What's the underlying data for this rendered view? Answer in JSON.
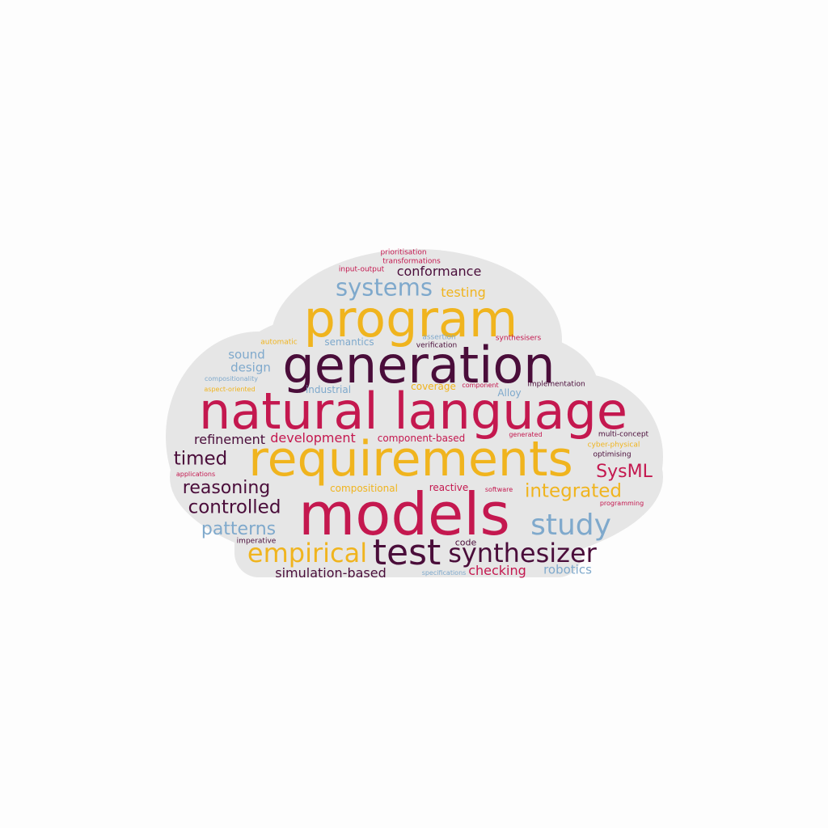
{
  "palette": {
    "background": "#fdfdfd",
    "cloud": "#e6e6e6",
    "crimson": "#c4184f",
    "gold": "#f0b41e",
    "plum": "#4a0d3a",
    "steel": "#7fa9cc"
  },
  "words": [
    {
      "text": "prioritisation",
      "color": "#c4184f"
    },
    {
      "text": "transformations",
      "color": "#c4184f"
    },
    {
      "text": "input-output",
      "color": "#c4184f"
    },
    {
      "text": "conformance",
      "color": "#4a0d3a"
    },
    {
      "text": "systems",
      "color": "#7fa9cc"
    },
    {
      "text": "testing",
      "color": "#f0b41e"
    },
    {
      "text": "program",
      "color": "#f0b41e"
    },
    {
      "text": "automatic",
      "color": "#f0b41e"
    },
    {
      "text": "semantics",
      "color": "#7fa9cc"
    },
    {
      "text": "assertion",
      "color": "#7fa9cc"
    },
    {
      "text": "verification",
      "color": "#4a0d3a"
    },
    {
      "text": "synthesisers",
      "color": "#c4184f"
    },
    {
      "text": "sound",
      "color": "#7fa9cc"
    },
    {
      "text": "design",
      "color": "#7fa9cc"
    },
    {
      "text": "generation",
      "color": "#4a0d3a"
    },
    {
      "text": "compositionality",
      "color": "#7fa9cc"
    },
    {
      "text": "aspect-oriented",
      "color": "#f0b41e"
    },
    {
      "text": "industrial",
      "color": "#7fa9cc"
    },
    {
      "text": "coverage",
      "color": "#f0b41e"
    },
    {
      "text": "component",
      "color": "#c4184f"
    },
    {
      "text": "implementation",
      "color": "#4a0d3a"
    },
    {
      "text": "Alloy",
      "color": "#7fa9cc"
    },
    {
      "text": "natural language",
      "color": "#c4184f"
    },
    {
      "text": "refinement",
      "color": "#4a0d3a"
    },
    {
      "text": "development",
      "color": "#c4184f"
    },
    {
      "text": "component-based",
      "color": "#c4184f"
    },
    {
      "text": "generated",
      "color": "#c4184f"
    },
    {
      "text": "multi-concept",
      "color": "#4a0d3a"
    },
    {
      "text": "cyber-physical",
      "color": "#f0b41e"
    },
    {
      "text": "timed",
      "color": "#4a0d3a"
    },
    {
      "text": "requirements",
      "color": "#f0b41e"
    },
    {
      "text": "optimising",
      "color": "#4a0d3a"
    },
    {
      "text": "SysML",
      "color": "#c4184f"
    },
    {
      "text": "applications",
      "color": "#c4184f"
    },
    {
      "text": "reasoning",
      "color": "#4a0d3a"
    },
    {
      "text": "compositional",
      "color": "#f0b41e"
    },
    {
      "text": "reactive",
      "color": "#c4184f"
    },
    {
      "text": "software",
      "color": "#c4184f"
    },
    {
      "text": "integrated",
      "color": "#f0b41e"
    },
    {
      "text": "programming",
      "color": "#c4184f"
    },
    {
      "text": "controlled",
      "color": "#4a0d3a"
    },
    {
      "text": "models",
      "color": "#c4184f"
    },
    {
      "text": "study",
      "color": "#7fa9cc"
    },
    {
      "text": "patterns",
      "color": "#7fa9cc"
    },
    {
      "text": "imperative",
      "color": "#4a0d3a"
    },
    {
      "text": "code",
      "color": "#4a0d3a"
    },
    {
      "text": "empirical",
      "color": "#f0b41e"
    },
    {
      "text": "test",
      "color": "#4a0d3a"
    },
    {
      "text": "synthesizer",
      "color": "#4a0d3a"
    },
    {
      "text": "simulation-based",
      "color": "#4a0d3a"
    },
    {
      "text": "specifications",
      "color": "#7fa9cc"
    },
    {
      "text": "checking",
      "color": "#c4184f"
    },
    {
      "text": "robotics",
      "color": "#7fa9cc"
    }
  ]
}
